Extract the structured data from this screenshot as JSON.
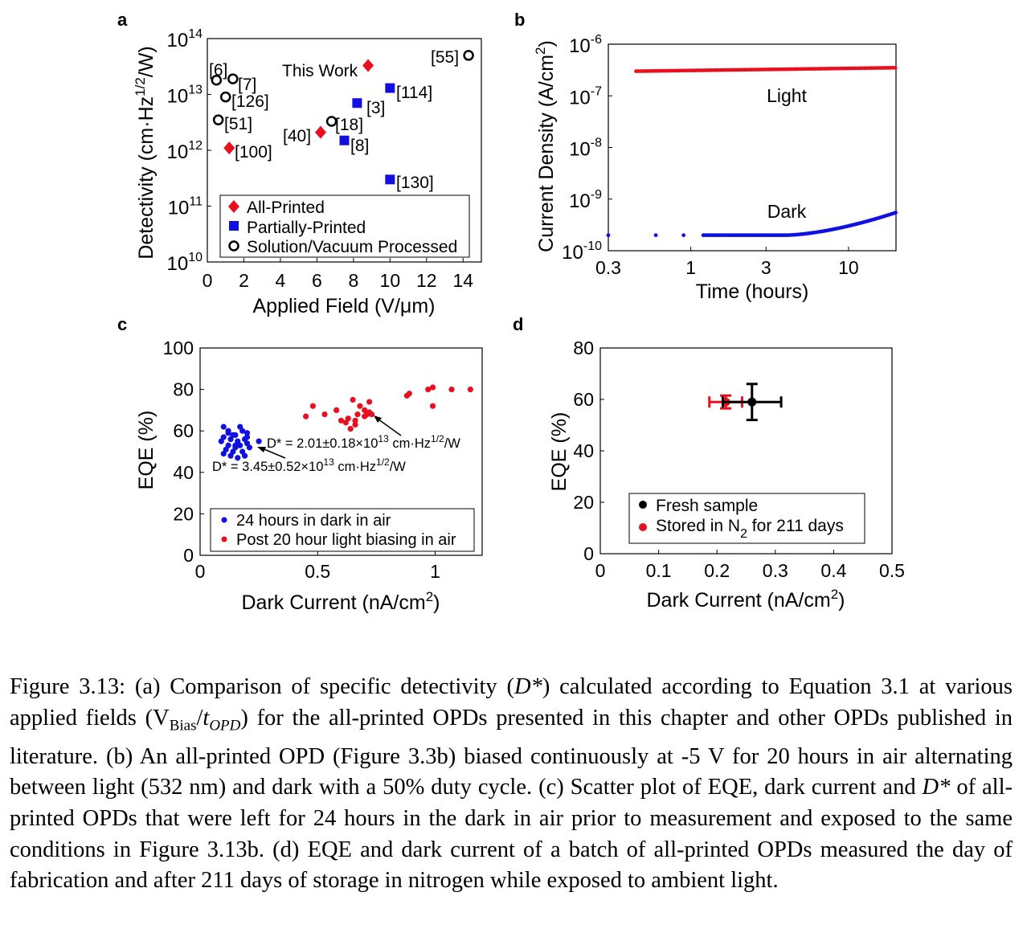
{
  "panels": {
    "a": {
      "label": "a",
      "type": "scatter",
      "xlabel": "Applied Field (V/μm)",
      "ylabel": "Detectivity (cm·Hz^1/2/W)",
      "xlim": [
        0,
        15
      ],
      "ylim_log10": [
        10,
        14
      ],
      "xticks": [
        "0",
        "2",
        "4",
        "6",
        "8",
        "10",
        "12",
        "14"
      ],
      "yticks": [
        "10",
        "11",
        "12",
        "13",
        "14"
      ],
      "series": [
        {
          "name": "All-Printed",
          "marker": "diamond",
          "color": "#e8101e",
          "points": [
            {
              "x": 8.8,
              "y": 33000000000000.0,
              "label": "This Work"
            },
            {
              "x": 1.2,
              "y": 1100000000000.0,
              "label": "[100]"
            },
            {
              "x": 6.2,
              "y": 2100000000000.0,
              "label": "[40]"
            }
          ]
        },
        {
          "name": "Partially-Printed",
          "marker": "square",
          "color": "#1010e0",
          "points": [
            {
              "x": 10,
              "y": 13000000000000.0,
              "label": "[114]"
            },
            {
              "x": 8.2,
              "y": 7000000000000.0,
              "label": "[3]"
            },
            {
              "x": 7.5,
              "y": 1500000000000.0,
              "label": "[8]"
            },
            {
              "x": 10,
              "y": 300000000000.0,
              "label": "[130]"
            }
          ]
        },
        {
          "name": "Solution/Vacuum Processed",
          "marker": "circle",
          "color": "#000000",
          "points": [
            {
              "x": 14.3,
              "y": 50000000000000.0,
              "label": "[55]"
            },
            {
              "x": 0.5,
              "y": 18000000000000.0,
              "label": "[6]"
            },
            {
              "x": 1.4,
              "y": 19000000000000.0,
              "label": "[7]"
            },
            {
              "x": 1.0,
              "y": 9000000000000.0,
              "label": "[126]"
            },
            {
              "x": 0.6,
              "y": 3500000000000.0,
              "label": "[51]"
            },
            {
              "x": 6.8,
              "y": 3300000000000.0,
              "label": "[18]"
            }
          ]
        }
      ],
      "legend": "lower-right"
    },
    "b": {
      "label": "b",
      "type": "scatter",
      "xlabel": "Time (hours)",
      "ylabel": "Current Density (A/cm2)",
      "xscale": "log",
      "xlim": [
        0.3,
        20
      ],
      "ylim_log10": [
        -10,
        -6
      ],
      "xticks": [
        "0.3",
        "1",
        "3",
        "10"
      ],
      "yticks": [
        "-10",
        "-9",
        "-8",
        "-7",
        "-6"
      ],
      "annotations": [
        "Light",
        "Dark"
      ],
      "series": [
        {
          "name": "Light",
          "color": "#e8101e",
          "y_start": 3e-07,
          "y_end": 3.5e-07
        },
        {
          "name": "Dark",
          "color": "#1010e0",
          "y_start": 2e-10,
          "y_end": 5.5e-10
        }
      ]
    },
    "c": {
      "label": "c",
      "type": "scatter",
      "xlabel": "Dark Current (nA/cm2)",
      "ylabel": "EQE (%)",
      "xlim": [
        0,
        1.2
      ],
      "ylim": [
        0,
        100
      ],
      "xticks": [
        "0",
        "0.5",
        "1"
      ],
      "yticks": [
        "0",
        "20",
        "40",
        "60",
        "80",
        "100"
      ],
      "annotation_red": "D* = 2.01±0.18×10^13 cm·Hz^1/2/W",
      "annotation_blue": "D* = 3.45±0.52×10^13 cm·Hz^1/2/W",
      "series": [
        {
          "name": "24 hours in dark in air",
          "color": "#1010e0",
          "points": [
            [
              0.1,
              62
            ],
            [
              0.12,
              60
            ],
            [
              0.15,
              58
            ],
            [
              0.18,
              60
            ],
            [
              0.2,
              59
            ],
            [
              0.1,
              57
            ],
            [
              0.13,
              56
            ],
            [
              0.16,
              55
            ],
            [
              0.19,
              56
            ],
            [
              0.09,
              55
            ],
            [
              0.12,
              53
            ],
            [
              0.15,
              52
            ],
            [
              0.17,
              53
            ],
            [
              0.2,
              54
            ],
            [
              0.11,
              51
            ],
            [
              0.14,
              50
            ],
            [
              0.18,
              50
            ],
            [
              0.13,
              48
            ],
            [
              0.16,
              47
            ],
            [
              0.19,
              48
            ],
            [
              0.1,
              49
            ],
            [
              0.21,
              52
            ],
            [
              0.25,
              55
            ],
            [
              0.14,
              58
            ],
            [
              0.17,
              62
            ],
            [
              0.12,
              59
            ],
            [
              0.2,
              57
            ],
            [
              0.15,
              53
            ]
          ]
        },
        {
          "name": "Post 20 hour light biasing in air",
          "color": "#e8101e",
          "points": [
            [
              0.45,
              67
            ],
            [
              0.48,
              72
            ],
            [
              0.53,
              68
            ],
            [
              0.58,
              70
            ],
            [
              0.6,
              65
            ],
            [
              0.63,
              66
            ],
            [
              0.65,
              75
            ],
            [
              0.66,
              63
            ],
            [
              0.67,
              68
            ],
            [
              0.7,
              67
            ],
            [
              0.72,
              69
            ],
            [
              0.68,
              72
            ],
            [
              0.62,
              64
            ],
            [
              0.66,
              65
            ],
            [
              0.72,
              74
            ],
            [
              0.71,
              68
            ],
            [
              0.7,
              70
            ],
            [
              0.88,
              77
            ],
            [
              0.89,
              78
            ],
            [
              0.97,
              80
            ],
            [
              0.99,
              81
            ],
            [
              0.99,
              72
            ],
            [
              1.07,
              80
            ],
            [
              1.15,
              80
            ],
            [
              0.64,
              61
            ],
            [
              0.73,
              68
            ]
          ]
        }
      ]
    },
    "d": {
      "label": "d",
      "type": "scatter",
      "xlabel": "Dark Current (nA/cm2)",
      "ylabel": "EQE (%)",
      "xlim": [
        0,
        0.5
      ],
      "ylim": [
        0,
        80
      ],
      "xticks": [
        "0",
        "0.1",
        "0.2",
        "0.3",
        "0.4",
        "0.5"
      ],
      "yticks": [
        "0",
        "20",
        "40",
        "60",
        "80"
      ],
      "series": [
        {
          "name": "Fresh sample",
          "color": "#000000",
          "x": 0.26,
          "y": 59,
          "xerr": 0.05,
          "yerr": 7
        },
        {
          "name": "Stored in N2 for 211 days",
          "color": "#e8101e",
          "x": 0.215,
          "y": 59,
          "xerr": 0.028,
          "yerr": 2.5
        }
      ]
    }
  },
  "caption": {
    "fig_no": "Figure 3.13:",
    "text_a1": " (a) Comparison of specific detectivity (",
    "dstar": "D*",
    "text_a2": ") calculated according to Equation 3.1 at various applied fields (V",
    "sub_bias": "Bias",
    "slash": "/",
    "t_opd": "t",
    "sub_opd": "OPD",
    "text_a3": ") for the all-printed OPDs presented in this chapter and other OPDs published in literature. (b) An all-printed OPD (Figure 3.3b) biased continuously at -5 V for 20 hours in air alternating between light (532 nm) and dark with a 50% duty cycle. (c) Scatter plot of EQE, dark current and ",
    "dstar2": "D*",
    "text_c": " of all-printed OPDs that were left for 24 hours in the dark in air prior to measurement and exposed to the same conditions in Figure 3.13b. (d) EQE and dark current of a batch of all-printed OPDs measured the day of fabrication and after 211 days of storage in nitrogen while exposed to ambient light."
  }
}
